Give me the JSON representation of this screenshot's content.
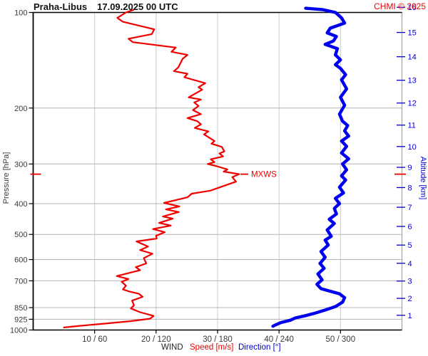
{
  "header": {
    "station": "Praha-Libus",
    "datetime": "17.09.2025 00 UTC",
    "watermark": "CHMI © 2025"
  },
  "colors": {
    "speed": "#ee0000",
    "direction": "#0000ee",
    "alt_text": "#0000cc",
    "text": "#3a3a3a",
    "grid_h": "#b3b3b3",
    "grid_v": "#cccccc",
    "axis": "#000000",
    "border_right": "#999999",
    "watermark": "#ee0000"
  },
  "chart_data": {
    "type": "line",
    "title": "Praha-Libus 17.09.2025 00 UTC",
    "grid": true,
    "y_axis": {
      "label": "Pressure [hPa]",
      "scale": "log",
      "min": 100,
      "max": 1000,
      "ticks": [
        100,
        200,
        300,
        400,
        500,
        600,
        700,
        850,
        925,
        1000
      ]
    },
    "y2_axis": {
      "label": "Altitude [km]",
      "ticks": [
        1,
        2,
        3,
        4,
        5,
        6,
        7,
        8,
        9,
        10,
        11,
        12,
        13,
        14,
        15,
        16
      ]
    },
    "x_axis": {
      "label": "WIND",
      "speed": {
        "label": "Speed [m/s]",
        "min": 0,
        "max": 60,
        "ticks": [
          10,
          20,
          30,
          40,
          50
        ]
      },
      "direction": {
        "label": "Direction [°]",
        "min": 0,
        "max": 360,
        "ticks": [
          60,
          120,
          180,
          240,
          300
        ]
      },
      "tick_labels": [
        "10 / 60",
        "20 / 120",
        "30 / 180",
        "40 / 240",
        "50 / 300"
      ]
    },
    "annotation": {
      "label": "MXWS",
      "pressure_hPa": 323,
      "speed_ms": 33.5
    },
    "series": [
      {
        "name": "Speed",
        "unit": "m/s",
        "color": "#ee0000",
        "points_pressure_value": [
          [
            98,
            16.4
          ],
          [
            100,
            15.1
          ],
          [
            104,
            13.7
          ],
          [
            107,
            14.6
          ],
          [
            113,
            19.7
          ],
          [
            117,
            19.3
          ],
          [
            121,
            15.5
          ],
          [
            124,
            16.2
          ],
          [
            129,
            23.2
          ],
          [
            133,
            22.5
          ],
          [
            136,
            25.1
          ],
          [
            140,
            24.3
          ],
          [
            149,
            23.6
          ],
          [
            153,
            22.9
          ],
          [
            156,
            25.1
          ],
          [
            160,
            24.6
          ],
          [
            167,
            28.0
          ],
          [
            172,
            26.9
          ],
          [
            175,
            27.5
          ],
          [
            185,
            25.3
          ],
          [
            188,
            27.3
          ],
          [
            192,
            26.2
          ],
          [
            197,
            26.9
          ],
          [
            203,
            26.0
          ],
          [
            209,
            27.3
          ],
          [
            215,
            25.1
          ],
          [
            220,
            26.7
          ],
          [
            225,
            27.3
          ],
          [
            231,
            26.3
          ],
          [
            237,
            28.5
          ],
          [
            242,
            27.8
          ],
          [
            254,
            29.5
          ],
          [
            259,
            29.0
          ],
          [
            265,
            30.7
          ],
          [
            274,
            31.1
          ],
          [
            278,
            30.3
          ],
          [
            284,
            30.9
          ],
          [
            290,
            28.9
          ],
          [
            296,
            29.5
          ],
          [
            300,
            28.4
          ],
          [
            305,
            29.9
          ],
          [
            312,
            31.6
          ],
          [
            317,
            31.0
          ],
          [
            323,
            33.5
          ],
          [
            330,
            32.4
          ],
          [
            341,
            33.0
          ],
          [
            364,
            28.8
          ],
          [
            372,
            25.8
          ],
          [
            382,
            25.1
          ],
          [
            398,
            21.3
          ],
          [
            408,
            23.8
          ],
          [
            417,
            21.6
          ],
          [
            425,
            23.7
          ],
          [
            439,
            21.1
          ],
          [
            446,
            22.7
          ],
          [
            460,
            20.5
          ],
          [
            469,
            22.4
          ],
          [
            481,
            19.5
          ],
          [
            492,
            21.4
          ],
          [
            505,
            20.0
          ],
          [
            515,
            20.1
          ],
          [
            526,
            16.8
          ],
          [
            546,
            18.7
          ],
          [
            560,
            17.4
          ],
          [
            575,
            19.4
          ],
          [
            594,
            18.0
          ],
          [
            617,
            18.4
          ],
          [
            634,
            16.7
          ],
          [
            648,
            17.4
          ],
          [
            676,
            13.6
          ],
          [
            691,
            15.5
          ],
          [
            705,
            14.4
          ],
          [
            725,
            15.1
          ],
          [
            745,
            14.6
          ],
          [
            757,
            15.7
          ],
          [
            769,
            17.2
          ],
          [
            786,
            17.8
          ],
          [
            808,
            16.1
          ],
          [
            836,
            16.4
          ],
          [
            855,
            15.9
          ],
          [
            879,
            17.4
          ],
          [
            903,
            19.6
          ],
          [
            921,
            19.0
          ],
          [
            938,
            15.8
          ],
          [
            955,
            11.5
          ],
          [
            970,
            7.6
          ],
          [
            982,
            4.9
          ]
        ]
      },
      {
        "name": "Direction",
        "unit": "°",
        "color": "#0000ee",
        "points_pressure_value": [
          [
            97,
            266
          ],
          [
            98,
            283
          ],
          [
            100,
            295
          ],
          [
            104,
            301
          ],
          [
            108,
            304
          ],
          [
            112,
            290
          ],
          [
            116,
            287
          ],
          [
            119,
            296
          ],
          [
            123,
            293
          ],
          [
            126,
            285
          ],
          [
            130,
            297
          ],
          [
            136,
            295
          ],
          [
            141,
            300
          ],
          [
            146,
            295
          ],
          [
            150,
            300
          ],
          [
            157,
            305
          ],
          [
            163,
            301
          ],
          [
            174,
            306
          ],
          [
            185,
            300
          ],
          [
            196,
            304
          ],
          [
            209,
            299
          ],
          [
            220,
            302
          ],
          [
            227,
            307
          ],
          [
            236,
            304
          ],
          [
            245,
            308
          ],
          [
            254,
            301
          ],
          [
            264,
            306
          ],
          [
            277,
            301
          ],
          [
            289,
            308
          ],
          [
            300,
            302
          ],
          [
            313,
            306
          ],
          [
            327,
            301
          ],
          [
            337,
            305
          ],
          [
            355,
            299
          ],
          [
            370,
            303
          ],
          [
            385,
            295
          ],
          [
            400,
            299
          ],
          [
            414,
            294
          ],
          [
            431,
            296
          ],
          [
            448,
            289
          ],
          [
            462,
            294
          ],
          [
            484,
            287
          ],
          [
            507,
            291
          ],
          [
            521,
            285
          ],
          [
            540,
            288
          ],
          [
            566,
            281
          ],
          [
            590,
            285
          ],
          [
            617,
            280
          ],
          [
            639,
            284
          ],
          [
            666,
            278
          ],
          [
            695,
            282
          ],
          [
            718,
            277
          ],
          [
            741,
            281
          ],
          [
            753,
            289
          ],
          [
            769,
            299
          ],
          [
            791,
            304
          ],
          [
            817,
            302
          ],
          [
            844,
            295
          ],
          [
            867,
            284
          ],
          [
            887,
            274
          ],
          [
            901,
            266
          ],
          [
            916,
            256
          ],
          [
            931,
            251
          ],
          [
            947,
            242
          ],
          [
            962,
            237
          ],
          [
            973,
            234
          ]
        ]
      }
    ]
  }
}
